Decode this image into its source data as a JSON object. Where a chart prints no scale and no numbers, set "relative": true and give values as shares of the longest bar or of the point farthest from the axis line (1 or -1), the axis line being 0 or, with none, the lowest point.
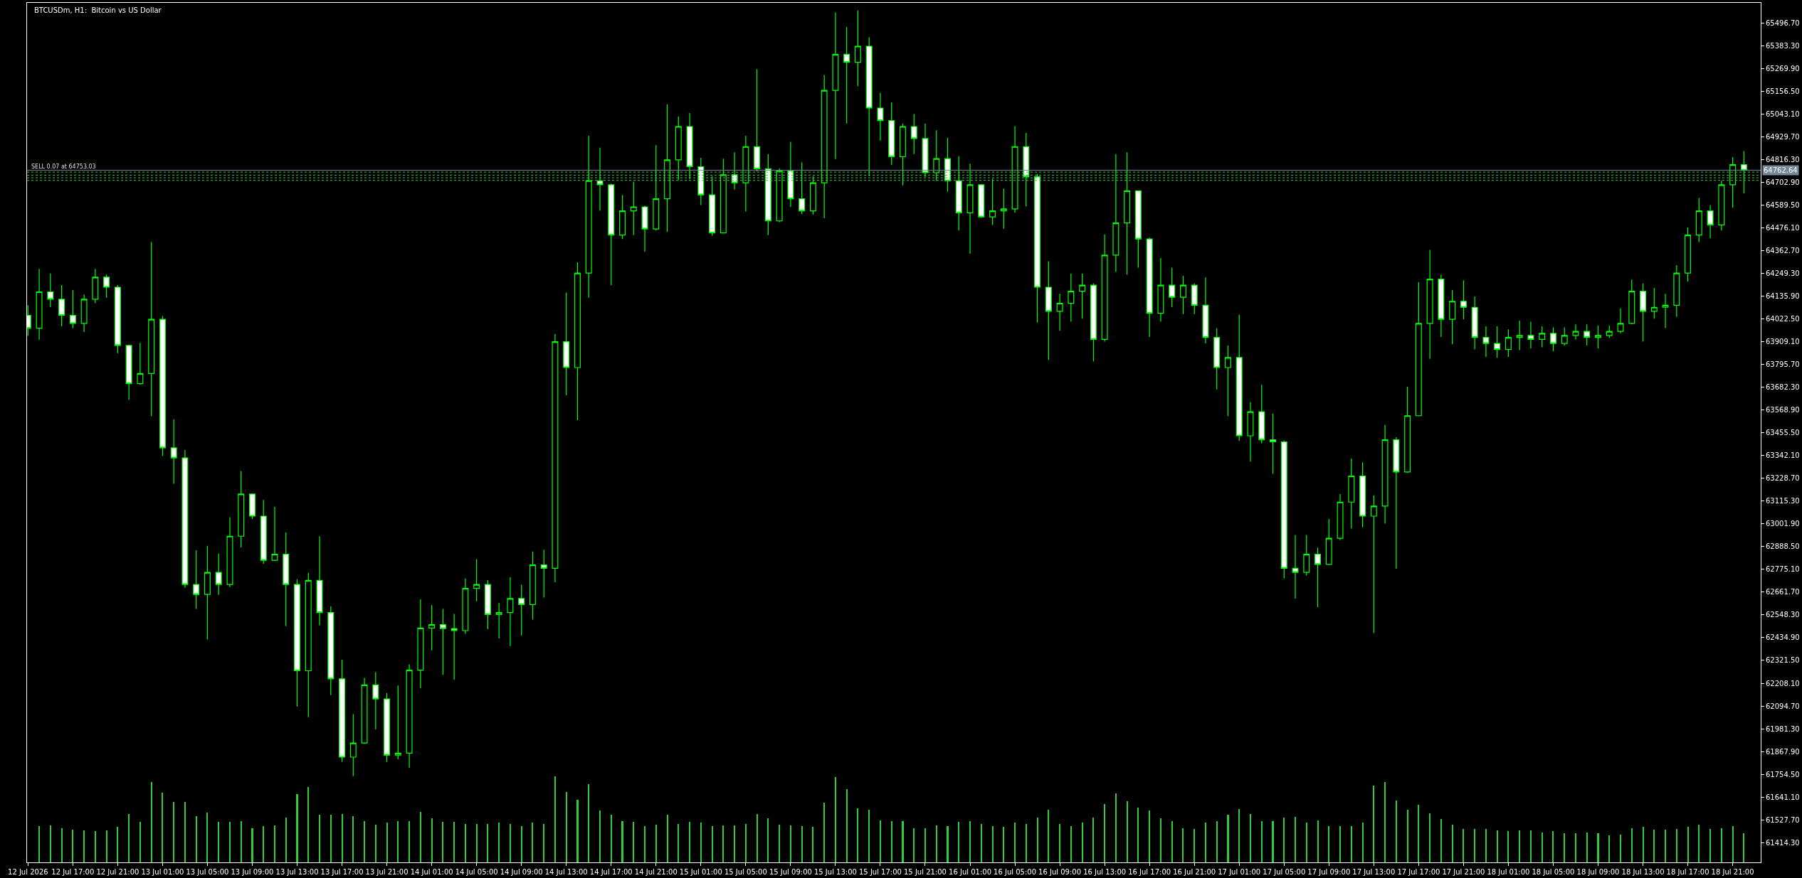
{
  "chart_data": [
    {
      "type": "candlestick",
      "title": "BTCUSDm, H1:  Bitcoin vs US Dollar",
      "color": "#00ff00",
      "x": [
        "2026-07-12T13:00",
        "2026-07-12T14:00",
        "2026-07-12T15:00",
        "2026-07-12T16:00",
        "2026-07-12T17:00",
        "2026-07-12T18:00",
        "2026-07-12T19:00",
        "2026-07-12T20:00",
        "2026-07-12T21:00",
        "2026-07-12T22:00",
        "2026-07-12T23:00",
        "2026-07-13T00:00",
        "2026-07-13T01:00",
        "2026-07-13T02:00",
        "2026-07-13T03:00",
        "2026-07-13T04:00",
        "2026-07-13T05:00",
        "2026-07-13T06:00",
        "2026-07-13T07:00",
        "2026-07-13T08:00",
        "2026-07-13T09:00",
        "2026-07-13T10:00",
        "2026-07-13T11:00",
        "2026-07-13T12:00",
        "2026-07-13T13:00",
        "2026-07-13T14:00",
        "2026-07-13T15:00",
        "2026-07-13T16:00",
        "2026-07-13T17:00",
        "2026-07-13T18:00",
        "2026-07-13T19:00",
        "2026-07-13T20:00",
        "2026-07-13T21:00",
        "2026-07-13T22:00",
        "2026-07-13T23:00",
        "2026-07-14T00:00",
        "2026-07-14T01:00",
        "2026-07-14T02:00",
        "2026-07-14T03:00",
        "2026-07-14T04:00",
        "2026-07-14T05:00",
        "2026-07-14T06:00",
        "2026-07-14T07:00",
        "2026-07-14T08:00",
        "2026-07-14T09:00",
        "2026-07-14T10:00",
        "2026-07-14T11:00",
        "2026-07-14T12:00",
        "2026-07-14T13:00",
        "2026-07-14T14:00",
        "2026-07-14T15:00",
        "2026-07-14T16:00",
        "2026-07-14T17:00",
        "2026-07-14T18:00",
        "2026-07-14T19:00",
        "2026-07-14T20:00",
        "2026-07-14T21:00",
        "2026-07-14T22:00",
        "2026-07-14T23:00",
        "2026-07-15T00:00",
        "2026-07-15T01:00",
        "2026-07-15T02:00",
        "2026-07-15T03:00",
        "2026-07-15T04:00",
        "2026-07-15T05:00",
        "2026-07-15T06:00",
        "2026-07-15T07:00",
        "2026-07-15T08:00",
        "2026-07-15T09:00",
        "2026-07-15T10:00",
        "2026-07-15T11:00",
        "2026-07-15T12:00",
        "2026-07-15T13:00",
        "2026-07-15T14:00",
        "2026-07-15T15:00",
        "2026-07-15T16:00",
        "2026-07-15T17:00",
        "2026-07-15T18:00",
        "2026-07-15T19:00",
        "2026-07-15T20:00",
        "2026-07-15T21:00",
        "2026-07-15T22:00",
        "2026-07-15T23:00",
        "2026-07-16T00:00",
        "2026-07-16T01:00",
        "2026-07-16T02:00",
        "2026-07-16T03:00",
        "2026-07-16T04:00",
        "2026-07-16T05:00",
        "2026-07-16T06:00",
        "2026-07-16T07:00",
        "2026-07-16T08:00",
        "2026-07-16T09:00",
        "2026-07-16T10:00",
        "2026-07-16T11:00",
        "2026-07-16T12:00",
        "2026-07-16T13:00",
        "2026-07-16T14:00",
        "2026-07-16T15:00",
        "2026-07-16T16:00",
        "2026-07-16T17:00",
        "2026-07-16T18:00",
        "2026-07-16T19:00",
        "2026-07-16T20:00",
        "2026-07-16T21:00",
        "2026-07-16T22:00",
        "2026-07-16T23:00",
        "2026-07-17T00:00",
        "2026-07-17T01:00",
        "2026-07-17T02:00",
        "2026-07-17T03:00",
        "2026-07-17T04:00",
        "2026-07-17T05:00",
        "2026-07-17T06:00",
        "2026-07-17T07:00",
        "2026-07-17T08:00",
        "2026-07-17T09:00",
        "2026-07-17T10:00",
        "2026-07-17T11:00",
        "2026-07-17T12:00",
        "2026-07-17T13:00",
        "2026-07-17T14:00",
        "2026-07-17T15:00",
        "2026-07-17T16:00",
        "2026-07-17T17:00",
        "2026-07-17T18:00",
        "2026-07-17T19:00",
        "2026-07-17T20:00",
        "2026-07-17T21:00",
        "2026-07-17T22:00",
        "2026-07-17T23:00",
        "2026-07-18T00:00",
        "2026-07-18T01:00",
        "2026-07-18T02:00",
        "2026-07-18T03:00",
        "2026-07-18T04:00",
        "2026-07-18T05:00",
        "2026-07-18T06:00",
        "2026-07-18T07:00",
        "2026-07-18T08:00",
        "2026-07-18T09:00",
        "2026-07-18T10:00",
        "2026-07-18T11:00",
        "2026-07-18T12:00",
        "2026-07-18T13:00",
        "2026-07-18T14:00",
        "2026-07-18T15:00",
        "2026-07-18T16:00",
        "2026-07-18T17:00",
        "2026-07-18T18:00",
        "2026-07-18T19:00",
        "2026-07-18T20:00",
        "2026-07-18T21:00",
        "2026-07-18T22:00"
      ],
      "ohlc": [
        [
          64040,
          64090,
          63938,
          63976
        ],
        [
          63976,
          64271,
          63919,
          64157
        ],
        [
          64157,
          64248,
          64081,
          64120
        ],
        [
          64120,
          64191,
          63985,
          64040
        ],
        [
          64040,
          64166,
          63976,
          64000
        ],
        [
          64000,
          64144,
          63957,
          64120
        ],
        [
          64120,
          64271,
          64100,
          64230
        ],
        [
          64230,
          64243,
          64128,
          64180
        ],
        [
          64180,
          64191,
          63852,
          63890
        ],
        [
          63890,
          63894,
          63619,
          63700
        ],
        [
          63700,
          63903,
          63694,
          63750
        ],
        [
          63750,
          64405,
          63538,
          64020
        ],
        [
          64020,
          64037,
          63340,
          63380
        ],
        [
          63380,
          63522,
          63201,
          63330
        ],
        [
          63330,
          63369,
          62683,
          62700
        ],
        [
          62700,
          62870,
          62578,
          62650
        ],
        [
          62650,
          62892,
          62426,
          62760
        ],
        [
          62760,
          62854,
          62648,
          62700
        ],
        [
          62700,
          63035,
          62687,
          62940
        ],
        [
          62940,
          63264,
          62883,
          63150
        ],
        [
          63150,
          63153,
          63026,
          63040
        ],
        [
          63040,
          63121,
          62803,
          62820
        ],
        [
          62820,
          63087,
          62816,
          62850
        ],
        [
          62850,
          62959,
          62492,
          62700
        ],
        [
          62700,
          62725,
          62092,
          62270
        ],
        [
          62270,
          62759,
          62039,
          62720
        ],
        [
          62720,
          62940,
          62496,
          62560
        ],
        [
          62560,
          62591,
          62149,
          62230
        ],
        [
          62230,
          62325,
          61816,
          61840
        ],
        [
          61840,
          62054,
          61745,
          61910
        ],
        [
          61910,
          62235,
          61905,
          62200
        ],
        [
          62200,
          62264,
          61978,
          62130
        ],
        [
          62130,
          62159,
          61816,
          61850
        ],
        [
          61850,
          62197,
          61829,
          61860
        ],
        [
          61860,
          62302,
          61787,
          62273
        ],
        [
          62273,
          62626,
          62183,
          62483
        ],
        [
          62483,
          62597,
          62372,
          62500
        ],
        [
          62500,
          62578,
          62250,
          62480
        ],
        [
          62480,
          62553,
          62225,
          62470
        ],
        [
          62470,
          62730,
          62454,
          62680
        ],
        [
          62680,
          62826,
          62616,
          62700
        ],
        [
          62700,
          62721,
          62477,
          62550
        ],
        [
          62550,
          62607,
          62431,
          62560
        ],
        [
          62560,
          62736,
          62393,
          62630
        ],
        [
          62630,
          62698,
          62445,
          62600
        ],
        [
          62600,
          62864,
          62525,
          62797
        ],
        [
          62797,
          62873,
          62635,
          62780
        ],
        [
          62780,
          63947,
          62711,
          63909
        ],
        [
          63909,
          64153,
          63642,
          63780
        ],
        [
          63780,
          64304,
          63518,
          64250
        ],
        [
          64250,
          64934,
          64128,
          64710
        ],
        [
          64710,
          64875,
          64561,
          64690
        ],
        [
          64690,
          64696,
          64191,
          64440
        ],
        [
          64440,
          64639,
          64420,
          64560
        ],
        [
          64560,
          64706,
          64439,
          64580
        ],
        [
          64580,
          64586,
          64357,
          64470
        ],
        [
          64470,
          64887,
          64462,
          64620
        ],
        [
          64620,
          65091,
          64456,
          64814
        ],
        [
          64814,
          65030,
          64713,
          64980
        ],
        [
          64980,
          65047,
          64719,
          64780
        ],
        [
          64780,
          64824,
          64589,
          64640
        ],
        [
          64640,
          64732,
          64437,
          64450
        ],
        [
          64450,
          64820,
          64448,
          64740
        ],
        [
          64740,
          64852,
          64666,
          64700
        ],
        [
          64700,
          64934,
          64557,
          64880
        ],
        [
          64880,
          65266,
          64757,
          64770
        ],
        [
          64770,
          64843,
          64439,
          64510
        ],
        [
          64510,
          64772,
          64504,
          64760
        ],
        [
          64760,
          64904,
          64580,
          64620
        ],
        [
          64620,
          64801,
          64544,
          64560
        ],
        [
          64560,
          64732,
          64542,
          64700
        ],
        [
          64700,
          65237,
          64523,
          65160
        ],
        [
          65160,
          65548,
          64818,
          65340
        ],
        [
          65340,
          65476,
          64995,
          65300
        ],
        [
          65300,
          65558,
          65182,
          65380
        ],
        [
          65380,
          65424,
          64734,
          65072
        ],
        [
          65072,
          65148,
          64910,
          65010
        ],
        [
          65010,
          65100,
          64790,
          64830
        ],
        [
          64830,
          64995,
          64687,
          64980
        ],
        [
          64980,
          65043,
          64843,
          64920
        ],
        [
          64920,
          64995,
          64729,
          64750
        ],
        [
          64750,
          64961,
          64710,
          64820
        ],
        [
          64820,
          64923,
          64656,
          64710
        ],
        [
          64710,
          64833,
          64462,
          64550
        ],
        [
          64550,
          64795,
          64347,
          64690
        ],
        [
          64690,
          64694,
          64525,
          64530
        ],
        [
          64530,
          64719,
          64490,
          64560
        ],
        [
          64560,
          64671,
          64471,
          64570
        ],
        [
          64570,
          64982,
          64551,
          64880
        ],
        [
          64880,
          64948,
          64582,
          64730
        ],
        [
          64730,
          64744,
          64004,
          64180
        ],
        [
          64180,
          64309,
          63818,
          64060
        ],
        [
          64060,
          64147,
          63963,
          64100
        ],
        [
          64100,
          64248,
          64008,
          64160
        ],
        [
          64160,
          64248,
          64023,
          64190
        ],
        [
          64190,
          64199,
          63810,
          63920
        ],
        [
          63920,
          64443,
          63909,
          64340
        ],
        [
          64340,
          64843,
          64256,
          64500
        ],
        [
          64500,
          64852,
          64243,
          64660
        ],
        [
          64660,
          64662,
          64277,
          64420
        ],
        [
          64420,
          64427,
          63932,
          64050
        ],
        [
          64050,
          64325,
          64008,
          64190
        ],
        [
          64190,
          64277,
          64081,
          64130
        ],
        [
          64130,
          64237,
          64046,
          64190
        ],
        [
          64190,
          64199,
          64046,
          64090
        ],
        [
          64090,
          64229,
          63900,
          63930
        ],
        [
          63930,
          63976,
          63671,
          63780
        ],
        [
          63780,
          63890,
          63538,
          63830
        ],
        [
          63830,
          64043,
          63414,
          63440
        ],
        [
          63440,
          63608,
          63312,
          63560
        ],
        [
          63560,
          63694,
          63403,
          63420
        ],
        [
          63420,
          63551,
          63251,
          63410
        ],
        [
          63410,
          63417,
          62730,
          62780
        ],
        [
          62780,
          62946,
          62629,
          62760
        ],
        [
          62760,
          62946,
          62744,
          62850
        ],
        [
          62850,
          62883,
          62587,
          62800
        ],
        [
          62800,
          63026,
          62797,
          62930
        ],
        [
          62930,
          63150,
          62921,
          63110
        ],
        [
          63110,
          63327,
          62978,
          63240
        ],
        [
          63240,
          63308,
          62984,
          63040
        ],
        [
          63040,
          63144,
          62458,
          63090
        ],
        [
          63090,
          63494,
          63003,
          63420
        ],
        [
          63420,
          63433,
          62778,
          63260
        ],
        [
          63260,
          63684,
          63255,
          63540
        ],
        [
          63540,
          64205,
          63537,
          64000
        ],
        [
          64000,
          64366,
          63823,
          64220
        ],
        [
          64220,
          64243,
          63932,
          64020
        ],
        [
          64020,
          64166,
          63896,
          64110
        ],
        [
          64110,
          64214,
          64020,
          64080
        ],
        [
          64080,
          64134,
          63871,
          63930
        ],
        [
          63930,
          63985,
          63833,
          63900
        ],
        [
          63900,
          63985,
          63829,
          63870
        ],
        [
          63870,
          63970,
          63833,
          63930
        ],
        [
          63930,
          64014,
          63867,
          63940
        ],
        [
          63940,
          64008,
          63875,
          63920
        ],
        [
          63920,
          63985,
          63881,
          63950
        ],
        [
          63950,
          63980,
          63861,
          63900
        ],
        [
          63900,
          63980,
          63890,
          63940
        ],
        [
          63940,
          63995,
          63919,
          63960
        ],
        [
          63960,
          63995,
          63890,
          63930
        ],
        [
          63930,
          63989,
          63875,
          63940
        ],
        [
          63940,
          63989,
          63928,
          63960
        ],
        [
          63960,
          64075,
          63951,
          64000
        ],
        [
          64000,
          64218,
          63995,
          64160
        ],
        [
          64160,
          64199,
          63909,
          64060
        ],
        [
          64060,
          64176,
          64023,
          64080
        ],
        [
          64080,
          64147,
          63976,
          64090
        ],
        [
          64090,
          64290,
          64033,
          64250
        ],
        [
          64250,
          64477,
          64208,
          64440
        ],
        [
          64440,
          64624,
          64405,
          64560
        ],
        [
          64560,
          64589,
          64424,
          64490
        ],
        [
          64490,
          64710,
          64462,
          64690
        ],
        [
          64690,
          64828,
          64576,
          64790
        ],
        [
          64790,
          64858,
          64647,
          64762.64
        ]
      ],
      "xlim": [
        "2026-07-12T12:55",
        "2026-07-18T23:30"
      ],
      "ylim": [
        61316,
        65596
      ],
      "xticks": [
        {
          "value": "2026-07-12T13:00",
          "label": "12 Jul 2026"
        },
        {
          "value": "2026-07-12T17:00",
          "label": "12 Jul 17:00"
        },
        {
          "value": "2026-07-12T21:00",
          "label": "12 Jul 21:00"
        },
        {
          "value": "2026-07-13T01:00",
          "label": "13 Jul 01:00"
        },
        {
          "value": "2026-07-13T05:00",
          "label": "13 Jul 05:00"
        },
        {
          "value": "2026-07-13T09:00",
          "label": "13 Jul 09:00"
        },
        {
          "value": "2026-07-13T13:00",
          "label": "13 Jul 13:00"
        },
        {
          "value": "2026-07-13T17:00",
          "label": "13 Jul 17:00"
        },
        {
          "value": "2026-07-13T21:00",
          "label": "13 Jul 21:00"
        },
        {
          "value": "2026-07-14T01:00",
          "label": "14 Jul 01:00"
        },
        {
          "value": "2026-07-14T05:00",
          "label": "14 Jul 05:00"
        },
        {
          "value": "2026-07-14T09:00",
          "label": "14 Jul 09:00"
        },
        {
          "value": "2026-07-14T13:00",
          "label": "14 Jul 13:00"
        },
        {
          "value": "2026-07-14T17:00",
          "label": "14 Jul 17:00"
        },
        {
          "value": "2026-07-14T21:00",
          "label": "14 Jul 21:00"
        },
        {
          "value": "2026-07-15T01:00",
          "label": "15 Jul 01:00"
        },
        {
          "value": "2026-07-15T05:00",
          "label": "15 Jul 05:00"
        },
        {
          "value": "2026-07-15T09:00",
          "label": "15 Jul 09:00"
        },
        {
          "value": "2026-07-15T13:00",
          "label": "15 Jul 13:00"
        },
        {
          "value": "2026-07-15T17:00",
          "label": "15 Jul 17:00"
        },
        {
          "value": "2026-07-15T21:00",
          "label": "15 Jul 21:00"
        },
        {
          "value": "2026-07-16T01:00",
          "label": "16 Jul 01:00"
        },
        {
          "value": "2026-07-16T05:00",
          "label": "16 Jul 05:00"
        },
        {
          "value": "2026-07-16T09:00",
          "label": "16 Jul 09:00"
        },
        {
          "value": "2026-07-16T13:00",
          "label": "16 Jul 13:00"
        },
        {
          "value": "2026-07-16T17:00",
          "label": "16 Jul 17:00"
        },
        {
          "value": "2026-07-16T21:00",
          "label": "16 Jul 21:00"
        },
        {
          "value": "2026-07-17T01:00",
          "label": "17 Jul 01:00"
        },
        {
          "value": "2026-07-17T05:00",
          "label": "17 Jul 05:00"
        },
        {
          "value": "2026-07-17T09:00",
          "label": "17 Jul 09:00"
        },
        {
          "value": "2026-07-17T13:00",
          "label": "17 Jul 13:00"
        },
        {
          "value": "2026-07-17T17:00",
          "label": "17 Jul 17:00"
        },
        {
          "value": "2026-07-17T21:00",
          "label": "17 Jul 21:00"
        },
        {
          "value": "2026-07-18T01:00",
          "label": "18 Jul 01:00"
        },
        {
          "value": "2026-07-18T05:00",
          "label": "18 Jul 05:00"
        },
        {
          "value": "2026-07-18T09:00",
          "label": "18 Jul 09:00"
        },
        {
          "value": "2026-07-18T13:00",
          "label": "18 Jul 13:00"
        },
        {
          "value": "2026-07-18T17:00",
          "label": "18 Jul 17:00"
        },
        {
          "value": "2026-07-18T21:00",
          "label": "18 Jul 21:00"
        }
      ],
      "yticks": [
        {
          "value": 65496.7,
          "label": "65496.70"
        },
        {
          "value": 65383.3,
          "label": "65383.30"
        },
        {
          "value": 65269.9,
          "label": "65269.90"
        },
        {
          "value": 65156.5,
          "label": "65156.50"
        },
        {
          "value": 65043.1,
          "label": "65043.10"
        },
        {
          "value": 64929.7,
          "label": "64929.70"
        },
        {
          "value": 64816.3,
          "label": "64816.30"
        },
        {
          "value": 64702.9,
          "label": "64702.90"
        },
        {
          "value": 64589.5,
          "label": "64589.50"
        },
        {
          "value": 64476.1,
          "label": "64476.10"
        },
        {
          "value": 64362.7,
          "label": "64362.70"
        },
        {
          "value": 64249.3,
          "label": "64249.30"
        },
        {
          "value": 64135.9,
          "label": "64135.90"
        },
        {
          "value": 64022.5,
          "label": "64022.50"
        },
        {
          "value": 63909.1,
          "label": "63909.10"
        },
        {
          "value": 63795.7,
          "label": "63795.70"
        },
        {
          "value": 63682.3,
          "label": "63682.30"
        },
        {
          "value": 63568.9,
          "label": "63568.90"
        },
        {
          "value": 63455.5,
          "label": "63455.50"
        },
        {
          "value": 63342.1,
          "label": "63342.10"
        },
        {
          "value": 63228.7,
          "label": "63228.70"
        },
        {
          "value": 63115.3,
          "label": "63115.30"
        },
        {
          "value": 63001.9,
          "label": "63001.90"
        },
        {
          "value": 62888.5,
          "label": "62888.50"
        },
        {
          "value": 62775.1,
          "label": "62775.10"
        },
        {
          "value": 62661.7,
          "label": "62661.70"
        },
        {
          "value": 62548.3,
          "label": "62548.30"
        },
        {
          "value": 62434.9,
          "label": "62434.90"
        },
        {
          "value": 62321.5,
          "label": "62321.50"
        },
        {
          "value": 62208.1,
          "label": "62208.10"
        },
        {
          "value": 62094.7,
          "label": "62094.70"
        },
        {
          "value": 61981.3,
          "label": "61981.30"
        },
        {
          "value": 61867.9,
          "label": "61867.90"
        },
        {
          "value": 61754.5,
          "label": "61754.50"
        },
        {
          "value": 61641.1,
          "label": "61641.10"
        },
        {
          "value": 61527.7,
          "label": "61527.70"
        },
        {
          "value": 61414.3,
          "label": "61414.30"
        }
      ],
      "ref_lines": [
        {
          "axis": "y",
          "value": 64762.64,
          "label": "64762.64",
          "color": "#778899",
          "line_style": "solid"
        },
        {
          "axis": "y",
          "value": 64753.03,
          "label": "SELL 0.07 at 64753.03",
          "color": "#32cd32",
          "line_style": "dashed"
        },
        {
          "axis": "y",
          "value": 64738,
          "color": "#32cd32",
          "line_style": "dashed"
        },
        {
          "axis": "y",
          "value": 64725,
          "color": "#32cd32",
          "line_style": "dashed"
        },
        {
          "axis": "y",
          "value": 64712,
          "color": "#32cd32",
          "line_style": "dashed"
        }
      ]
    },
    {
      "type": "bar",
      "relative": true,
      "color": "#32cd32",
      "x": [
        "2026-07-12T14:00",
        "2026-07-12T15:00",
        "2026-07-12T16:00",
        "2026-07-12T17:00",
        "2026-07-12T18:00",
        "2026-07-12T19:00",
        "2026-07-12T20:00",
        "2026-07-12T21:00",
        "2026-07-12T22:00",
        "2026-07-12T23:00",
        "2026-07-13T00:00",
        "2026-07-13T01:00",
        "2026-07-13T02:00",
        "2026-07-13T03:00",
        "2026-07-13T04:00",
        "2026-07-13T05:00",
        "2026-07-13T06:00",
        "2026-07-13T07:00",
        "2026-07-13T08:00",
        "2026-07-13T09:00",
        "2026-07-13T10:00",
        "2026-07-13T11:00",
        "2026-07-13T12:00",
        "2026-07-13T13:00",
        "2026-07-13T14:00",
        "2026-07-13T15:00",
        "2026-07-13T16:00",
        "2026-07-13T17:00",
        "2026-07-13T18:00",
        "2026-07-13T19:00",
        "2026-07-13T20:00",
        "2026-07-13T21:00",
        "2026-07-13T22:00",
        "2026-07-13T23:00",
        "2026-07-14T00:00",
        "2026-07-14T01:00",
        "2026-07-14T02:00",
        "2026-07-14T03:00",
        "2026-07-14T04:00",
        "2026-07-14T05:00",
        "2026-07-14T06:00",
        "2026-07-14T07:00",
        "2026-07-14T08:00",
        "2026-07-14T09:00",
        "2026-07-14T10:00",
        "2026-07-14T11:00",
        "2026-07-14T12:00",
        "2026-07-14T13:00",
        "2026-07-14T14:00",
        "2026-07-14T15:00",
        "2026-07-14T16:00",
        "2026-07-14T17:00",
        "2026-07-14T18:00",
        "2026-07-14T19:00",
        "2026-07-14T20:00",
        "2026-07-14T21:00",
        "2026-07-14T22:00",
        "2026-07-14T23:00",
        "2026-07-15T00:00",
        "2026-07-15T01:00",
        "2026-07-15T02:00",
        "2026-07-15T03:00",
        "2026-07-15T04:00",
        "2026-07-15T05:00",
        "2026-07-15T06:00",
        "2026-07-15T07:00",
        "2026-07-15T08:00",
        "2026-07-15T09:00",
        "2026-07-15T10:00",
        "2026-07-15T11:00",
        "2026-07-15T12:00",
        "2026-07-15T13:00",
        "2026-07-15T14:00",
        "2026-07-15T15:00",
        "2026-07-15T16:00",
        "2026-07-15T17:00",
        "2026-07-15T18:00",
        "2026-07-15T19:00",
        "2026-07-15T20:00",
        "2026-07-15T21:00",
        "2026-07-15T22:00",
        "2026-07-15T23:00",
        "2026-07-16T00:00",
        "2026-07-16T01:00",
        "2026-07-16T02:00",
        "2026-07-16T03:00",
        "2026-07-16T04:00",
        "2026-07-16T05:00",
        "2026-07-16T06:00",
        "2026-07-16T07:00",
        "2026-07-16T08:00",
        "2026-07-16T09:00",
        "2026-07-16T10:00",
        "2026-07-16T11:00",
        "2026-07-16T12:00",
        "2026-07-16T13:00",
        "2026-07-16T14:00",
        "2026-07-16T15:00",
        "2026-07-16T16:00",
        "2026-07-16T17:00",
        "2026-07-16T18:00",
        "2026-07-16T19:00",
        "2026-07-16T20:00",
        "2026-07-16T21:00",
        "2026-07-16T22:00",
        "2026-07-16T23:00",
        "2026-07-17T00:00",
        "2026-07-17T01:00",
        "2026-07-17T02:00",
        "2026-07-17T03:00",
        "2026-07-17T04:00",
        "2026-07-17T05:00",
        "2026-07-17T06:00",
        "2026-07-17T07:00",
        "2026-07-17T08:00",
        "2026-07-17T09:00",
        "2026-07-17T10:00",
        "2026-07-17T11:00",
        "2026-07-17T12:00",
        "2026-07-17T13:00",
        "2026-07-17T14:00",
        "2026-07-17T15:00",
        "2026-07-17T16:00",
        "2026-07-17T17:00",
        "2026-07-17T18:00",
        "2026-07-17T19:00",
        "2026-07-17T20:00",
        "2026-07-17T21:00",
        "2026-07-17T22:00",
        "2026-07-17T23:00",
        "2026-07-18T00:00",
        "2026-07-18T01:00",
        "2026-07-18T02:00",
        "2026-07-18T03:00",
        "2026-07-18T04:00",
        "2026-07-18T05:00",
        "2026-07-18T06:00",
        "2026-07-18T07:00",
        "2026-07-18T08:00",
        "2026-07-18T09:00",
        "2026-07-18T10:00",
        "2026-07-18T11:00",
        "2026-07-18T12:00",
        "2026-07-18T13:00",
        "2026-07-18T14:00",
        "2026-07-18T15:00",
        "2026-07-18T16:00",
        "2026-07-18T17:00",
        "2026-07-18T18:00",
        "2026-07-18T19:00",
        "2026-07-18T20:00",
        "2026-07-18T21:00",
        "2026-07-18T22:00"
      ],
      "values": [
        0.42,
        0.43,
        0.4,
        0.38,
        0.37,
        0.36,
        0.37,
        0.41,
        0.56,
        0.47,
        0.93,
        0.81,
        0.7,
        0.7,
        0.54,
        0.58,
        0.47,
        0.47,
        0.48,
        0.4,
        0.42,
        0.43,
        0.52,
        0.79,
        0.88,
        0.55,
        0.55,
        0.56,
        0.54,
        0.48,
        0.44,
        0.46,
        0.48,
        0.48,
        0.59,
        0.51,
        0.47,
        0.47,
        0.45,
        0.45,
        0.45,
        0.46,
        0.45,
        0.42,
        0.46,
        0.45,
        1,
        0.82,
        0.73,
        0.91,
        0.6,
        0.55,
        0.48,
        0.47,
        0.42,
        0.44,
        0.55,
        0.45,
        0.47,
        0.46,
        0.42,
        0.43,
        0.43,
        0.45,
        0.56,
        0.51,
        0.44,
        0.43,
        0.42,
        0.41,
        0.69,
        0.99,
        0.85,
        0.63,
        0.61,
        0.49,
        0.48,
        0.48,
        0.4,
        0.4,
        0.43,
        0.42,
        0.47,
        0.48,
        0.45,
        0.42,
        0.41,
        0.46,
        0.45,
        0.52,
        0.61,
        0.45,
        0.42,
        0.46,
        0.52,
        0.68,
        0.8,
        0.71,
        0.64,
        0.6,
        0.51,
        0.48,
        0.4,
        0.39,
        0.46,
        0.48,
        0.55,
        0.62,
        0.56,
        0.48,
        0.48,
        0.52,
        0.53,
        0.46,
        0.49,
        0.42,
        0.42,
        0.42,
        0.46,
        0.89,
        0.93,
        0.72,
        0.61,
        0.67,
        0.57,
        0.5,
        0.44,
        0.39,
        0.39,
        0.39,
        0.37,
        0.36,
        0.37,
        0.37,
        0.35,
        0.36,
        0.34,
        0.34,
        0.35,
        0.34,
        0.31,
        0.32,
        0.4,
        0.41,
        0.38,
        0.38,
        0.39,
        0.41,
        0.44,
        0.39,
        0.4,
        0.42,
        0.34
      ],
      "xlim": [
        "2026-07-12T12:55",
        "2026-07-18T23:30"
      ]
    }
  ]
}
